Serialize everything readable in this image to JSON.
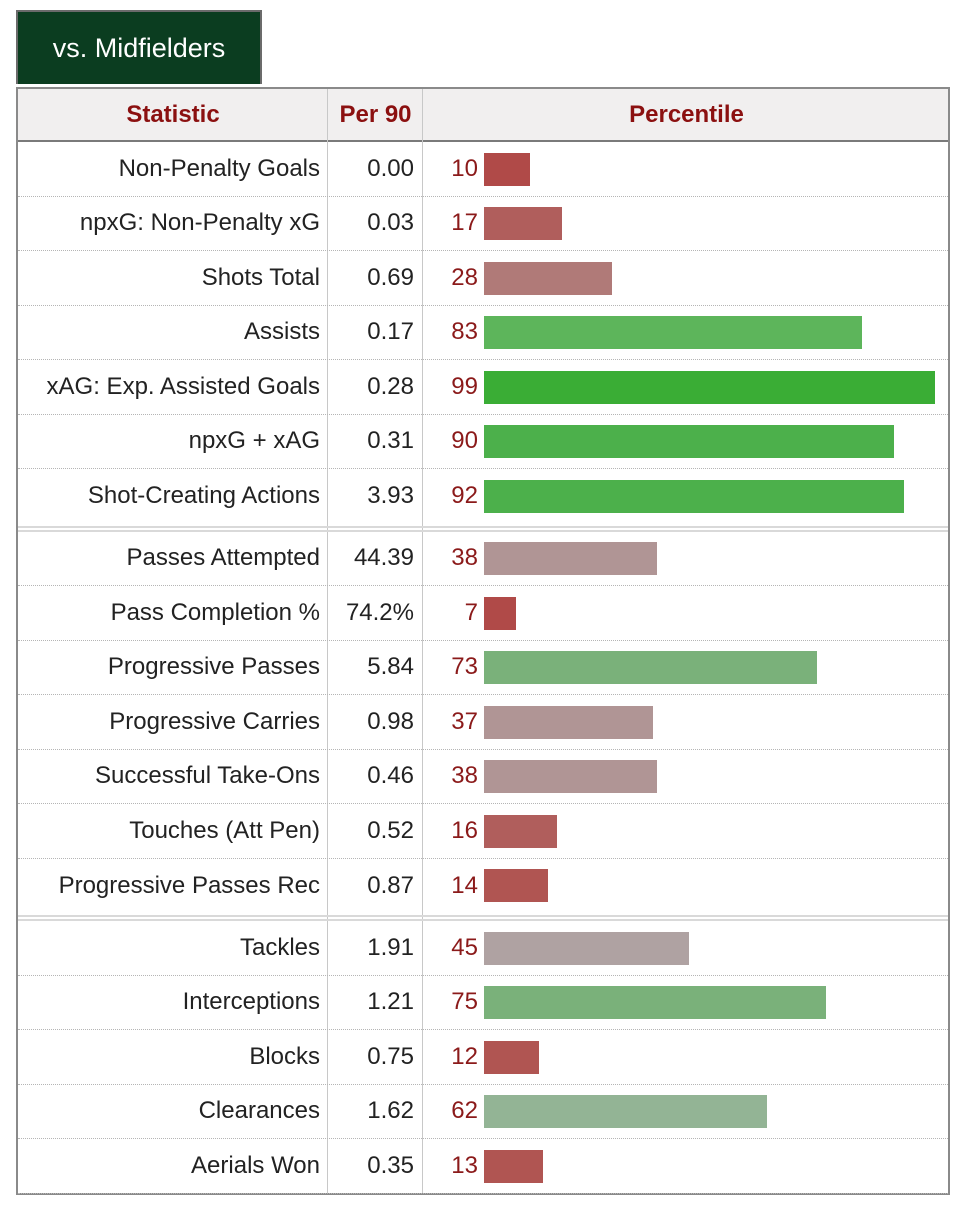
{
  "tab": {
    "label": "vs. Midfielders"
  },
  "header": {
    "statistic": "Statistic",
    "per90": "Per 90",
    "percentile": "Percentile"
  },
  "chart_data": {
    "type": "bar",
    "orientation": "horizontal",
    "title": "vs. Midfielders",
    "xlabel": "Percentile",
    "xlim": [
      0,
      100
    ],
    "columns": [
      "Statistic",
      "Per 90",
      "Percentile"
    ],
    "groups": [
      {
        "rows": [
          {
            "stat": "Non-Penalty Goals",
            "per90": "0.00",
            "percentile": 10
          },
          {
            "stat": "npxG: Non-Penalty xG",
            "per90": "0.03",
            "percentile": 17
          },
          {
            "stat": "Shots Total",
            "per90": "0.69",
            "percentile": 28
          },
          {
            "stat": "Assists",
            "per90": "0.17",
            "percentile": 83
          },
          {
            "stat": "xAG: Exp. Assisted Goals",
            "per90": "0.28",
            "percentile": 99
          },
          {
            "stat": "npxG + xAG",
            "per90": "0.31",
            "percentile": 90
          },
          {
            "stat": "Shot-Creating Actions",
            "per90": "3.93",
            "percentile": 92
          }
        ]
      },
      {
        "rows": [
          {
            "stat": "Passes Attempted",
            "per90": "44.39",
            "percentile": 38
          },
          {
            "stat": "Pass Completion %",
            "per90": "74.2%",
            "percentile": 7
          },
          {
            "stat": "Progressive Passes",
            "per90": "5.84",
            "percentile": 73
          },
          {
            "stat": "Progressive Carries",
            "per90": "0.98",
            "percentile": 37
          },
          {
            "stat": "Successful Take-Ons",
            "per90": "0.46",
            "percentile": 38
          },
          {
            "stat": "Touches (Att Pen)",
            "per90": "0.52",
            "percentile": 16
          },
          {
            "stat": "Progressive Passes Rec",
            "per90": "0.87",
            "percentile": 14
          }
        ]
      },
      {
        "rows": [
          {
            "stat": "Tackles",
            "per90": "1.91",
            "percentile": 45
          },
          {
            "stat": "Interceptions",
            "per90": "1.21",
            "percentile": 75
          },
          {
            "stat": "Blocks",
            "per90": "0.75",
            "percentile": 12
          },
          {
            "stat": "Clearances",
            "per90": "1.62",
            "percentile": 62
          },
          {
            "stat": "Aerials Won",
            "per90": "0.35",
            "percentile": 13
          }
        ]
      }
    ]
  },
  "colors": {
    "tab_bg": "#0b3d20",
    "header_text": "#8b1010",
    "percentile_text": "#8b1a1a"
  }
}
